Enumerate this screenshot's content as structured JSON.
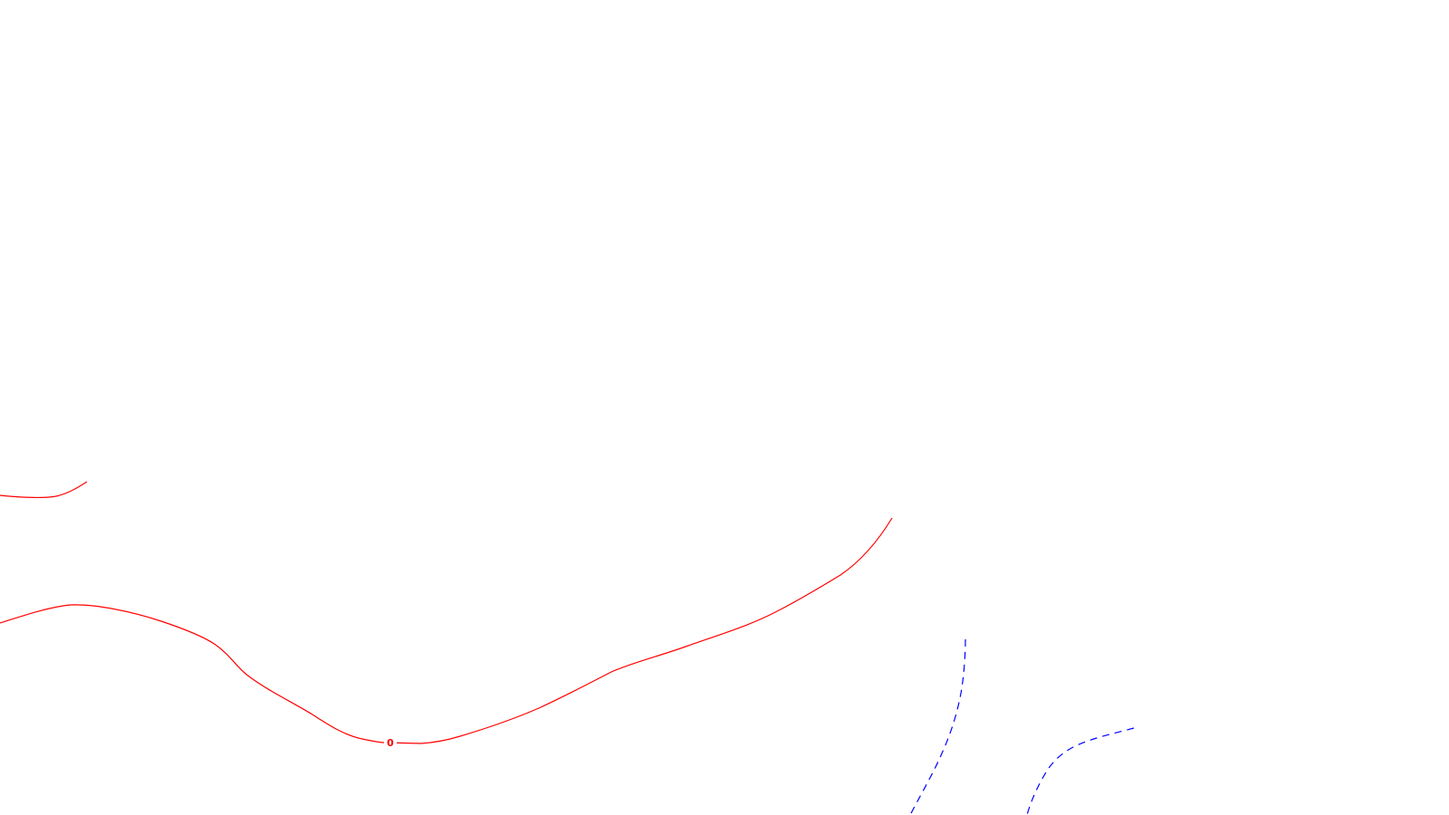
{
  "map": {
    "background": "#ffffff",
    "contours": [
      {
        "id": "zero-contour-left-fragment",
        "style": "solid",
        "color": "#ff0000"
      },
      {
        "id": "zero-contour-main",
        "style": "solid",
        "color": "#ff0000",
        "label": "0"
      },
      {
        "id": "negative-contour-left",
        "style": "dashed",
        "color": "#0000ff"
      },
      {
        "id": "negative-contour-right",
        "style": "dashed",
        "color": "#0000ff"
      }
    ]
  }
}
